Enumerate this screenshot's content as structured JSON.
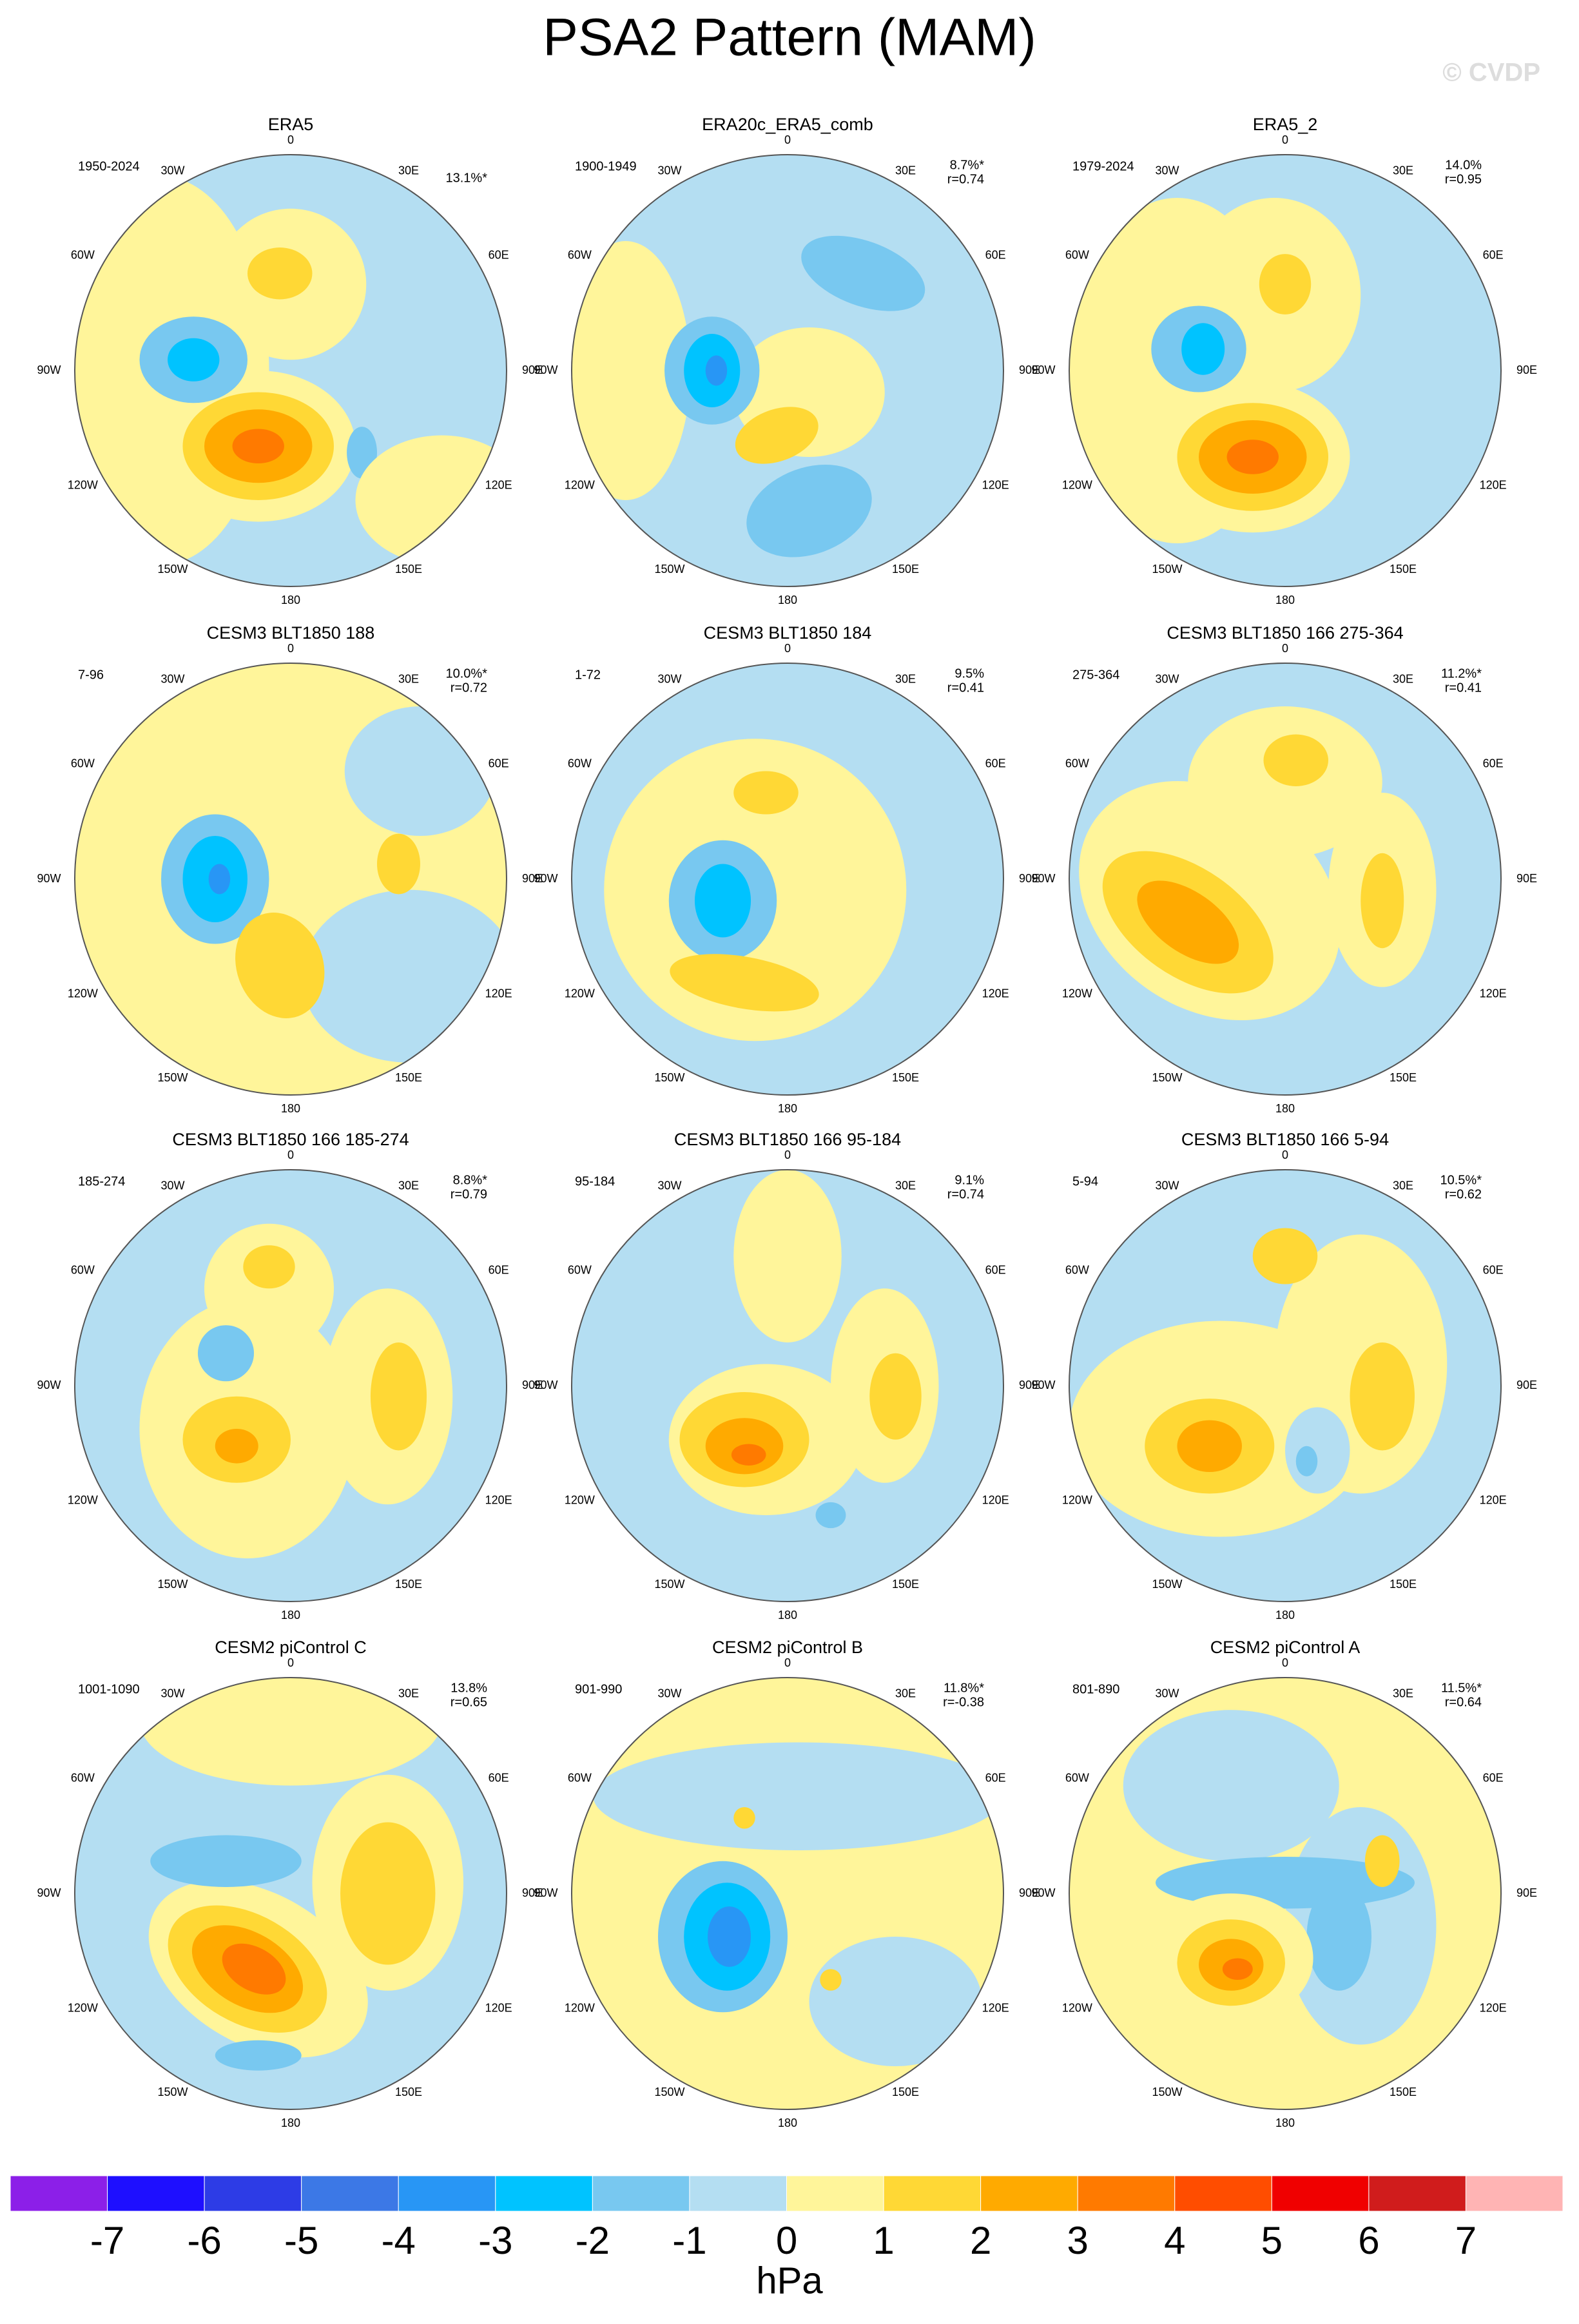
{
  "title": "PSA2 Pattern (MAM)",
  "watermark": "© CVDP",
  "lon_labels": [
    "0",
    "30E",
    "60E",
    "90E",
    "120E",
    "150E",
    "180",
    "150W",
    "120W",
    "90W",
    "60W",
    "30W"
  ],
  "panels": [
    {
      "title": "ERA5",
      "period": "1950-2024",
      "pct": "13.1%*"
    },
    {
      "title": "ERA20c_ERA5_comb",
      "period": "1900-1949",
      "pct": "8.7%*",
      "r": "r=0.74"
    },
    {
      "title": "ERA5_2",
      "period": "1979-2024",
      "pct": "14.0%",
      "r": "r=0.95"
    },
    {
      "title": "CESM3 BLT1850 188",
      "period": "7-96",
      "pct": "10.0%*",
      "r": "r=0.72"
    },
    {
      "title": "CESM3 BLT1850 184",
      "period": "1-72",
      "pct": "9.5%",
      "r": "r=0.41"
    },
    {
      "title": "CESM3 BLT1850 166 275-364",
      "period": "275-364",
      "pct": "11.2%*",
      "r": "r=0.41"
    },
    {
      "title": "CESM3 BLT1850 166 185-274",
      "period": "185-274",
      "pct": "8.8%*",
      "r": "r=0.79"
    },
    {
      "title": "CESM3 BLT1850 166 95-184",
      "period": "95-184",
      "pct": "9.1%",
      "r": "r=0.74"
    },
    {
      "title": "CESM3 BLT1850 166 5-94",
      "period": "5-94",
      "pct": "10.5%*",
      "r": "r=0.62"
    },
    {
      "title": "CESM2 piControl C",
      "period": "1001-1090",
      "pct": "13.8%",
      "r": "r=0.65"
    },
    {
      "title": "CESM2 piControl B",
      "period": "901-990",
      "pct": "11.8%*",
      "r": "r=-0.38"
    },
    {
      "title": "CESM2 piControl A",
      "period": "801-890",
      "pct": "11.5%*",
      "r": "r=0.64"
    }
  ],
  "colorbar": {
    "unit": "hPa",
    "ticks": [
      -7,
      -6,
      -5,
      -4,
      -3,
      -2,
      -1,
      0,
      1,
      2,
      3,
      4,
      5,
      6,
      7
    ],
    "colors": [
      "#8c1fe8",
      "#1e0fff",
      "#2d3ce6",
      "#3c78e6",
      "#2896f5",
      "#00c3ff",
      "#78c8f0",
      "#b4def2",
      "#fff59a",
      "#ffd835",
      "#ffaa00",
      "#ff7a00",
      "#ff4d00",
      "#f00000",
      "#d01c1c",
      "#ffb4b4"
    ]
  }
}
